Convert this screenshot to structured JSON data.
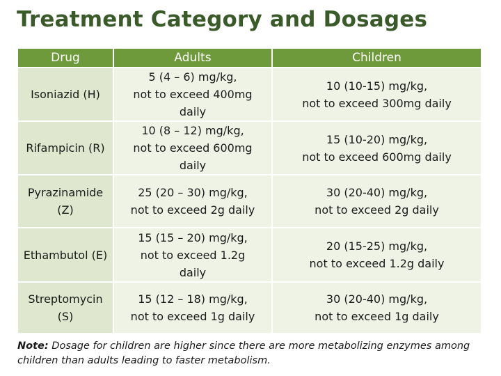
{
  "title": "Treatment Category and Dosages",
  "headers": {
    "drug": "Drug",
    "adults": "Adults",
    "children": "Children"
  },
  "rows": [
    {
      "drug": "Isoniazid (H)",
      "adults": [
        "5 (4 – 6) mg/kg,",
        "not to exceed 400mg",
        "daily"
      ],
      "children": [
        "10 (10-15) mg/kg,",
        "not to exceed 300mg daily"
      ]
    },
    {
      "drug": "Rifampicin (R)",
      "adults": [
        "10 (8 – 12) mg/kg,",
        "not to exceed 600mg",
        "daily"
      ],
      "children": [
        "15 (10-20) mg/kg,",
        "not to exceed 600mg daily"
      ]
    },
    {
      "drug": "Pyrazinamide (Z)",
      "adults": [
        "25 (20 – 30) mg/kg,",
        "not to exceed 2g daily"
      ],
      "children": [
        "30 (20-40) mg/kg,",
        "not to exceed 2g daily"
      ]
    },
    {
      "drug": "Ethambutol (E)",
      "adults": [
        "15 (15 – 20) mg/kg,",
        "not to exceed 1.2g",
        "daily"
      ],
      "children": [
        "20 (15-25) mg/kg,",
        "not to exceed 1.2g daily"
      ]
    },
    {
      "drug": "Streptomycin (S)",
      "adults": [
        "15 (12 – 18) mg/kg,",
        "not to exceed 1g daily"
      ],
      "children": [
        "30 (20-40) mg/kg,",
        "not to exceed 1g daily"
      ]
    }
  ],
  "note": {
    "label": "Note:",
    "text": " Dosage for children are higher since there are more metabolizing enzymes among children than adults leading to faster metabolism."
  },
  "colors": {
    "title": "#3a5a2a",
    "header_bg": "#6f9a3b",
    "drug_bg": "#dfe8cf",
    "cell_bg": "#eef3e6"
  }
}
